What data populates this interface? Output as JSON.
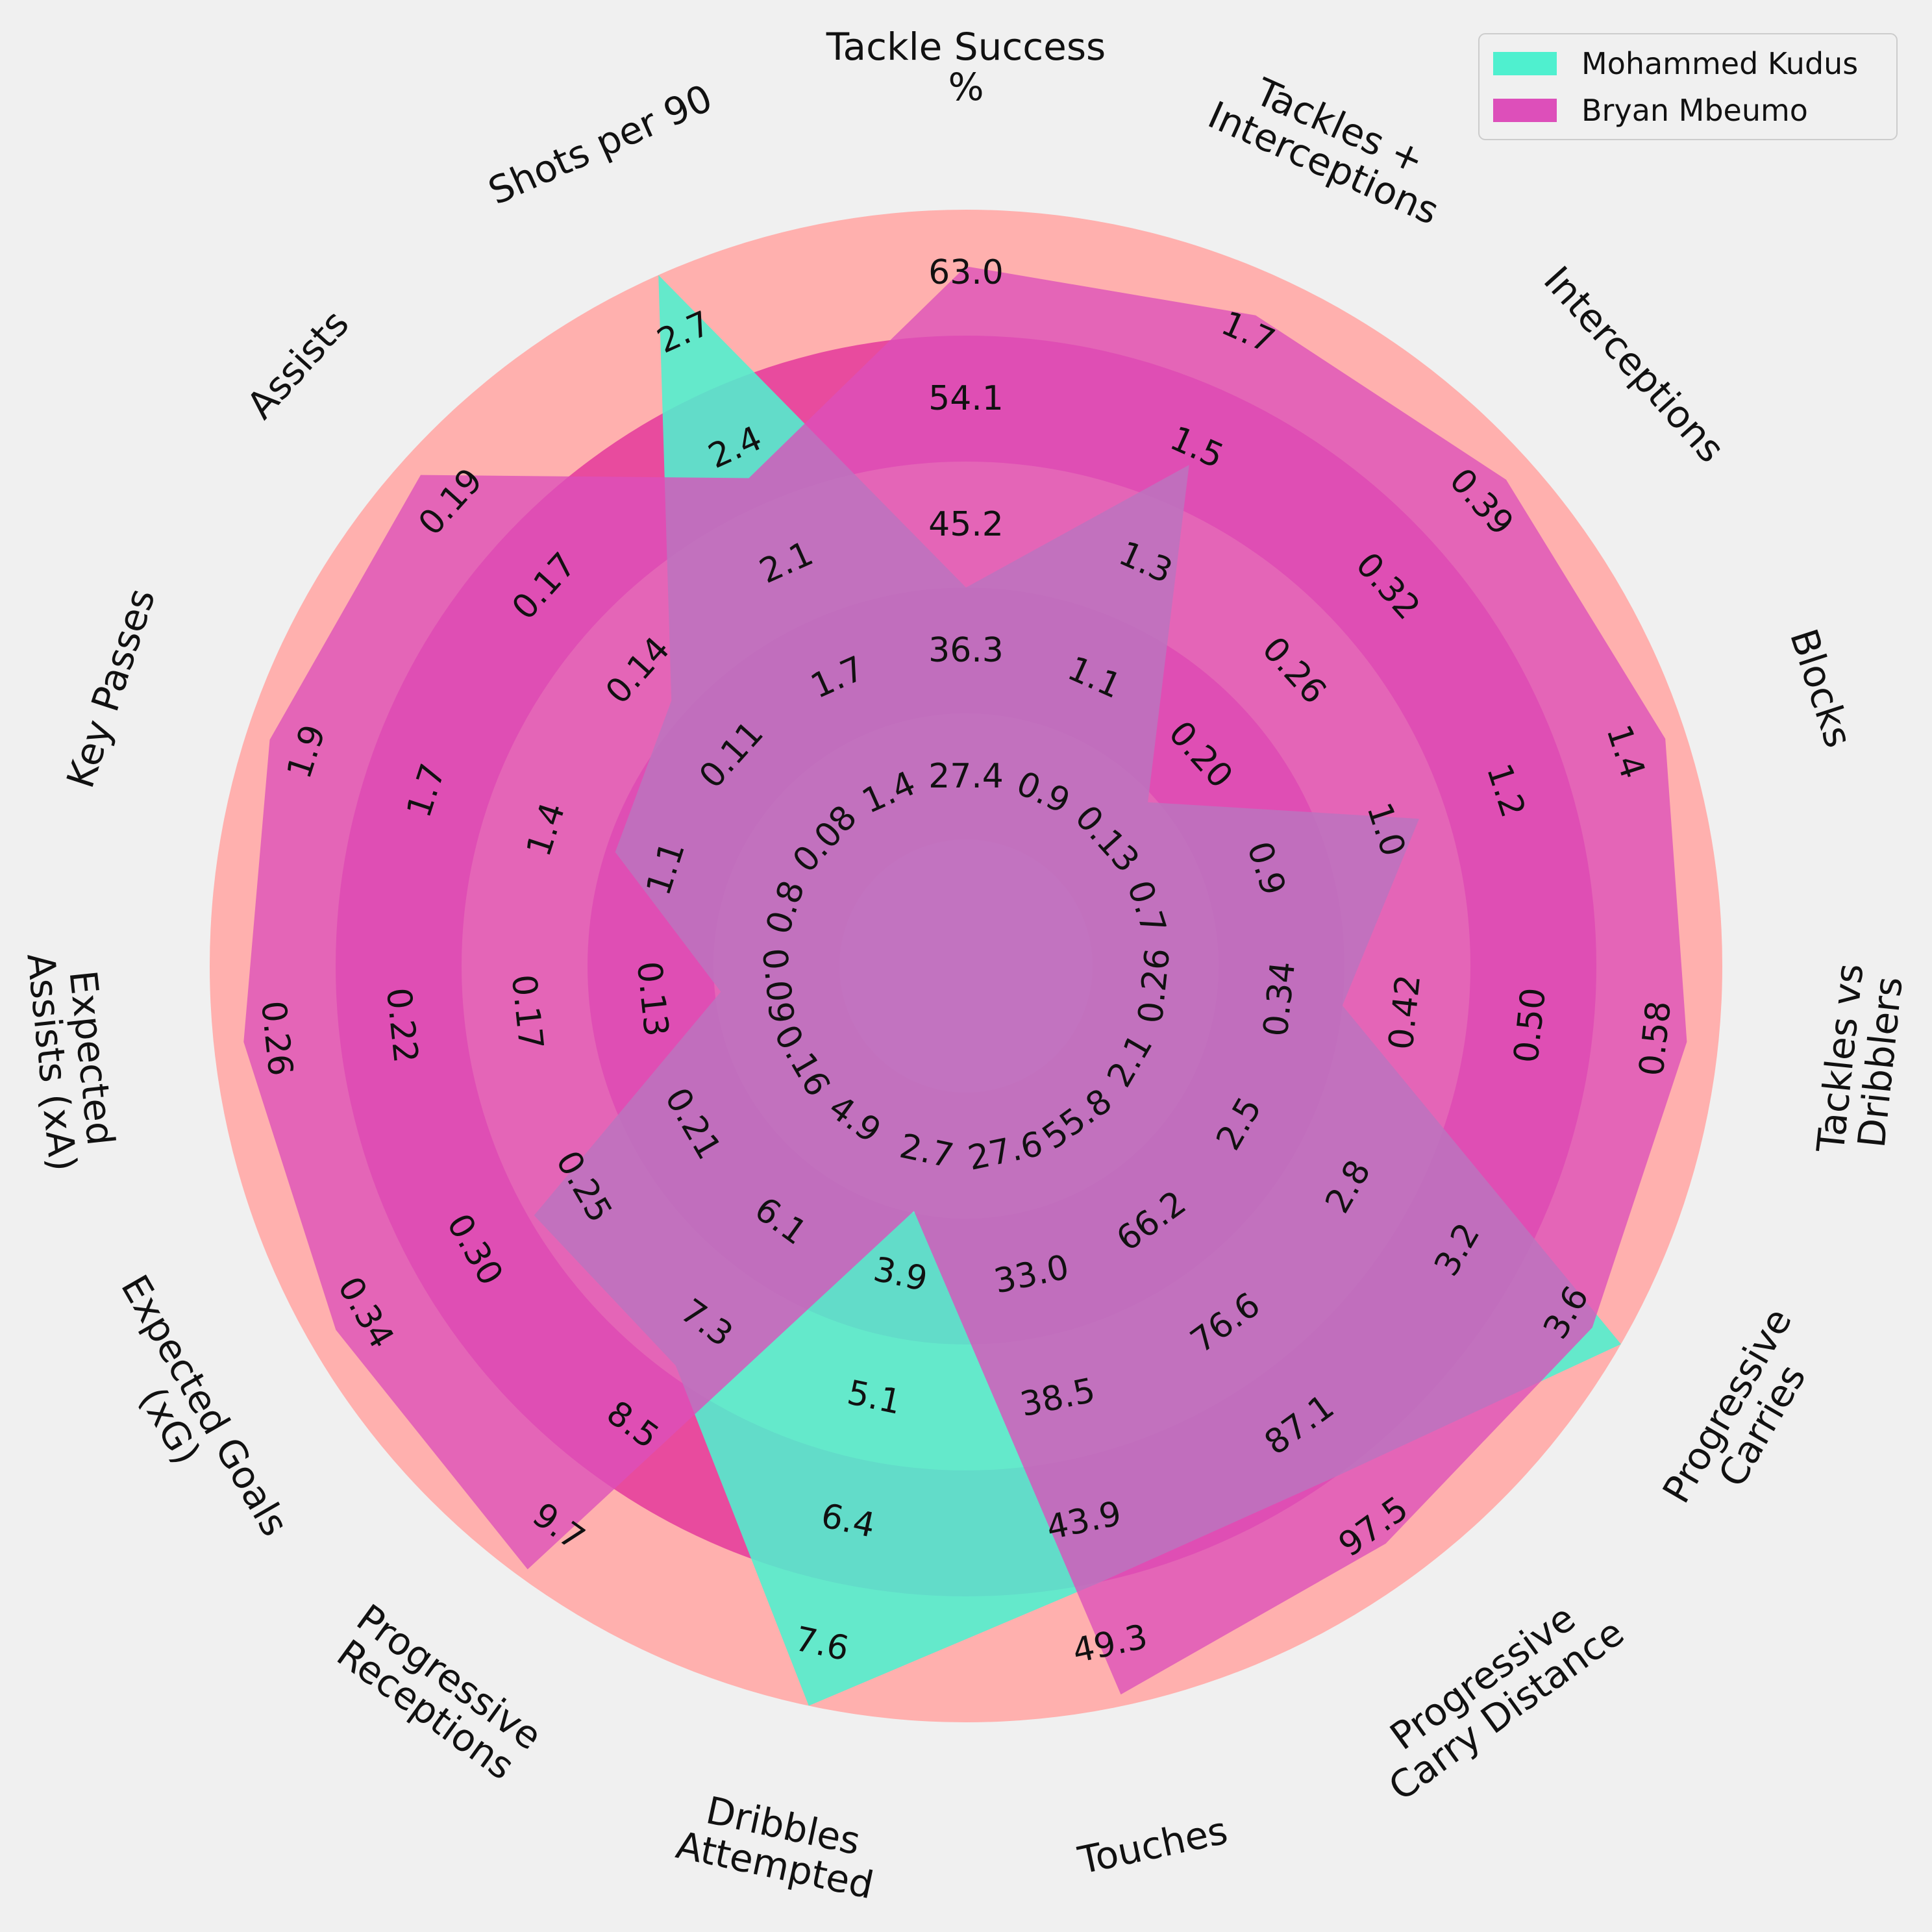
{
  "chart_data": {
    "type": "radar",
    "grid": false,
    "legend": {
      "placement": "top-right",
      "entries": [
        {
          "label": "Mohammed Kudus",
          "color": "#4ff0cf"
        },
        {
          "label": "Bryan Mbeumo",
          "color": "#dd4fba"
        }
      ]
    },
    "colors": {
      "background": "#f0f0f0",
      "ring_outer": "#ffb0ae",
      "ring_inner": "#e84b9e",
      "kudus": "#4ff0cf",
      "mbeumo": "#dd4fba"
    },
    "axes": [
      {
        "label": [
          "Tackle Success",
          "%"
        ],
        "min": 18.5,
        "max": 63.0,
        "ticks": [
          "27.4",
          "36.3",
          "45.2",
          "54.1",
          "63.0"
        ]
      },
      {
        "label": [
          "Tackles +",
          "Interceptions"
        ],
        "min": 0.7,
        "max": 1.7,
        "ticks": [
          "0.9",
          "1.1",
          "1.3",
          "1.5",
          "1.7"
        ]
      },
      {
        "label": [
          "Interceptions"
        ],
        "min": 0.07,
        "max": 0.39,
        "ticks": [
          "0.13",
          "0.20",
          "0.26",
          "0.32",
          "0.39"
        ]
      },
      {
        "label": [
          "Blocks"
        ],
        "min": 0.5,
        "max": 1.4,
        "ticks": [
          "0.7",
          "0.9",
          "1.0",
          "1.2",
          "1.4"
        ]
      },
      {
        "label": [
          "Tackles vs",
          "Dribblers"
        ],
        "min": 0.18,
        "max": 0.58,
        "ticks": [
          "0.26",
          "0.34",
          "0.42",
          "0.50",
          "0.58"
        ]
      },
      {
        "label": [
          "Progressive",
          "Carries"
        ],
        "min": 1.7,
        "max": 3.6,
        "ticks": [
          "2.1",
          "2.5",
          "2.8",
          "3.2",
          "3.6"
        ]
      },
      {
        "label": [
          "Progressive",
          "Carry Distance"
        ],
        "min": 45.4,
        "max": 97.5,
        "ticks": [
          "55.8",
          "66.2",
          "76.6",
          "87.1",
          "97.5"
        ]
      },
      {
        "label": [
          "Touches"
        ],
        "min": 22.1,
        "max": 49.3,
        "ticks": [
          "27.6",
          "33.0",
          "38.5",
          "43.9",
          "49.3"
        ]
      },
      {
        "label": [
          "Dribbles",
          "Attempted"
        ],
        "min": 1.5,
        "max": 7.6,
        "ticks": [
          "2.7",
          "3.9",
          "5.1",
          "6.4",
          "7.6"
        ]
      },
      {
        "label": [
          "Progressive",
          "Receptions"
        ],
        "min": 3.7,
        "max": 9.7,
        "ticks": [
          "4.9",
          "6.1",
          "7.3",
          "8.5",
          "9.7"
        ]
      },
      {
        "label": [
          "Expected Goals",
          "(xG)"
        ],
        "min": 0.12,
        "max": 0.34,
        "ticks": [
          "0.16",
          "0.21",
          "0.25",
          "0.30",
          "0.34"
        ]
      },
      {
        "label": [
          "Expected",
          "Assists (xA)"
        ],
        "min": 0.05,
        "max": 0.26,
        "ticks": [
          "0.09",
          "0.13",
          "0.17",
          "0.22",
          "0.26"
        ]
      },
      {
        "label": [
          "Key Passes"
        ],
        "min": 0.6,
        "max": 1.9,
        "ticks": [
          "0.8",
          "1.1",
          "1.4",
          "1.7",
          "1.9"
        ]
      },
      {
        "label": [
          "Assists"
        ],
        "min": 0.05,
        "max": 0.19,
        "ticks": [
          "0.08",
          "0.11",
          "0.14",
          "0.17",
          "0.19"
        ]
      },
      {
        "label": [
          "Shots per 90"
        ],
        "min": 1.0,
        "max": 2.7,
        "ticks": [
          "1.4",
          "1.7",
          "2.1",
          "2.4",
          "2.7"
        ]
      }
    ],
    "series": [
      {
        "name": "Mohammed Kudus",
        "values": [
          36.3,
          1.37,
          0.13,
          1.0,
          0.34,
          3.6,
          87.1,
          43.9,
          7.6,
          7.2,
          0.25,
          0.09,
          1.1,
          0.11,
          2.7
        ]
      },
      {
        "name": "Bryan Mbeumo",
        "values": [
          59.0,
          1.63,
          0.375,
          1.37,
          0.56,
          3.5,
          94.0,
          48.8,
          2.7,
          9.6,
          0.33,
          0.25,
          1.85,
          0.185,
          2.1
        ]
      }
    ]
  }
}
